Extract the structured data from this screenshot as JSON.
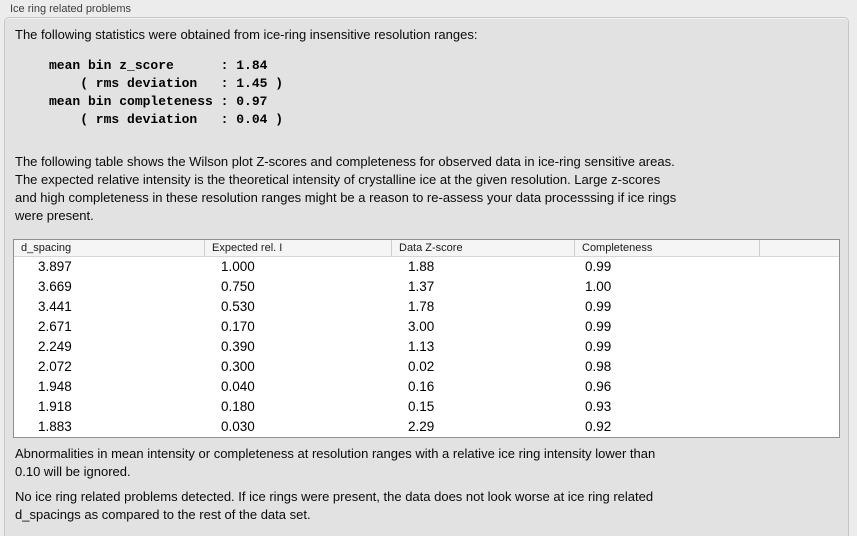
{
  "panel": {
    "title": "Ice ring related problems"
  },
  "intro": "The following statistics were obtained from ice-ring insensitive resolution ranges:",
  "stats_block": [
    "mean bin z_score      : 1.84",
    "    ( rms deviation   : 1.45 )",
    "mean bin completeness : 0.97",
    "    ( rms deviation   : 0.04 )"
  ],
  "description": [
    "The following table shows the Wilson plot Z-scores and completeness for observed data in ice-ring sensitive areas.",
    "The expected relative intensity is the theoretical intensity of crystalline ice at the given resolution. Large z-scores",
    "and high completeness in these resolution ranges might be a reason to re-assess your data processsing if ice rings",
    "were present."
  ],
  "table": {
    "columns": [
      "d_spacing",
      "Expected rel. I",
      "Data Z-score",
      "Completeness",
      ""
    ],
    "rows": [
      [
        "3.897",
        "1.000",
        "1.88",
        "0.99"
      ],
      [
        "3.669",
        "0.750",
        "1.37",
        "1.00"
      ],
      [
        "3.441",
        "0.530",
        "1.78",
        "0.99"
      ],
      [
        "2.671",
        "0.170",
        "3.00",
        "0.99"
      ],
      [
        "2.249",
        "0.390",
        "1.13",
        "0.99"
      ],
      [
        "2.072",
        "0.300",
        "0.02",
        "0.98"
      ],
      [
        "1.948",
        "0.040",
        "0.16",
        "0.96"
      ],
      [
        "1.918",
        "0.180",
        "0.15",
        "0.93"
      ],
      [
        "1.883",
        "0.030",
        "2.29",
        "0.92"
      ]
    ]
  },
  "note_ignore": [
    "Abnormalities in mean intensity or completeness at resolution ranges with a relative ice ring intensity lower than",
    "0.10 will be ignored."
  ],
  "conclusion": [
    "No ice ring related problems detected. If ice rings were present, the data does not look worse at ice ring related",
    "d_spacings as compared to the rest of the data set."
  ],
  "colors": {
    "window_bg": "#ececec",
    "panel_bg": "#e2e2e2",
    "panel_border": "#c6c6c6",
    "table_header_bg": "#f5f5f5",
    "table_border": "#8f8f8f"
  }
}
